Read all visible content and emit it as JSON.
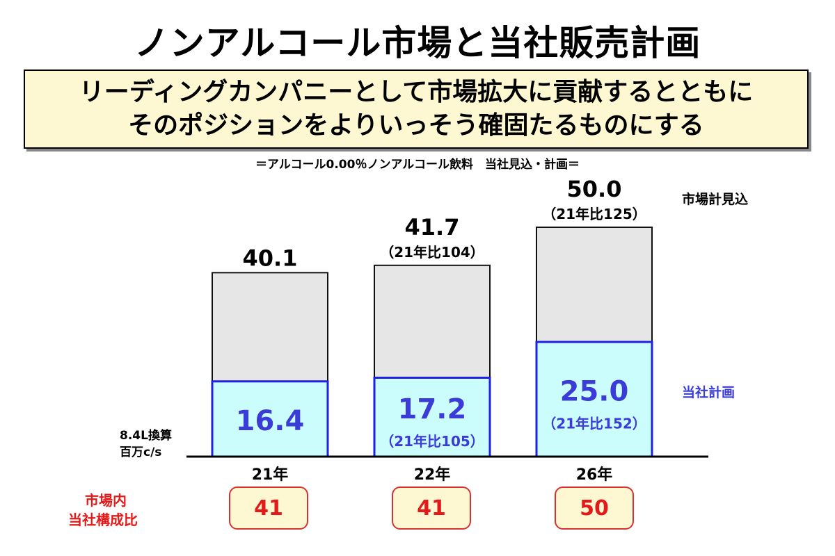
{
  "title": "ノンアルコール市場と当社販売計画",
  "banner": {
    "line1": "リーディングカンパニーとして市場拡大に貢献するとともに",
    "line2": "そのポジションをよりいっそう確固たるものにする"
  },
  "note": "＝アルコール0.00％ノンアルコール飲料　当社見込・計画＝",
  "unit_label": [
    "8.4L換算",
    "百万c/s"
  ],
  "legend": {
    "market": "市場計見込",
    "company": "当社計画"
  },
  "share_label": [
    "市場内",
    "当社構成比"
  ],
  "colors": {
    "market_fill": "#e6e6e6",
    "company_fill": "#ccfdfd",
    "company_edge": "#2020e0",
    "company_text": "#3b3bd8",
    "accent_red": "#e21a1a"
  },
  "chart_data": {
    "type": "bar",
    "stacked": true,
    "categories": [
      "21年",
      "22年",
      "26年"
    ],
    "series": [
      {
        "name": "当社計画",
        "values": [
          16.4,
          17.2,
          25.0
        ],
        "labels": [
          "16.4",
          "17.2",
          "25.0"
        ],
        "sublabels": [
          "",
          "（21年比105）",
          "（21年比152）"
        ]
      },
      {
        "name": "市場計見込",
        "totals": [
          40.1,
          41.7,
          50.0
        ],
        "labels": [
          "40.1",
          "41.7",
          "50.0"
        ],
        "sublabels": [
          "",
          "（21年比104）",
          "（21年比125）"
        ]
      }
    ],
    "share": {
      "name": "市場内当社構成比",
      "values": [
        "41",
        "41",
        "50"
      ]
    },
    "ylabel": "8.4L換算 百万c/s",
    "ylim": [
      0,
      50.0
    ],
    "grid": false
  }
}
